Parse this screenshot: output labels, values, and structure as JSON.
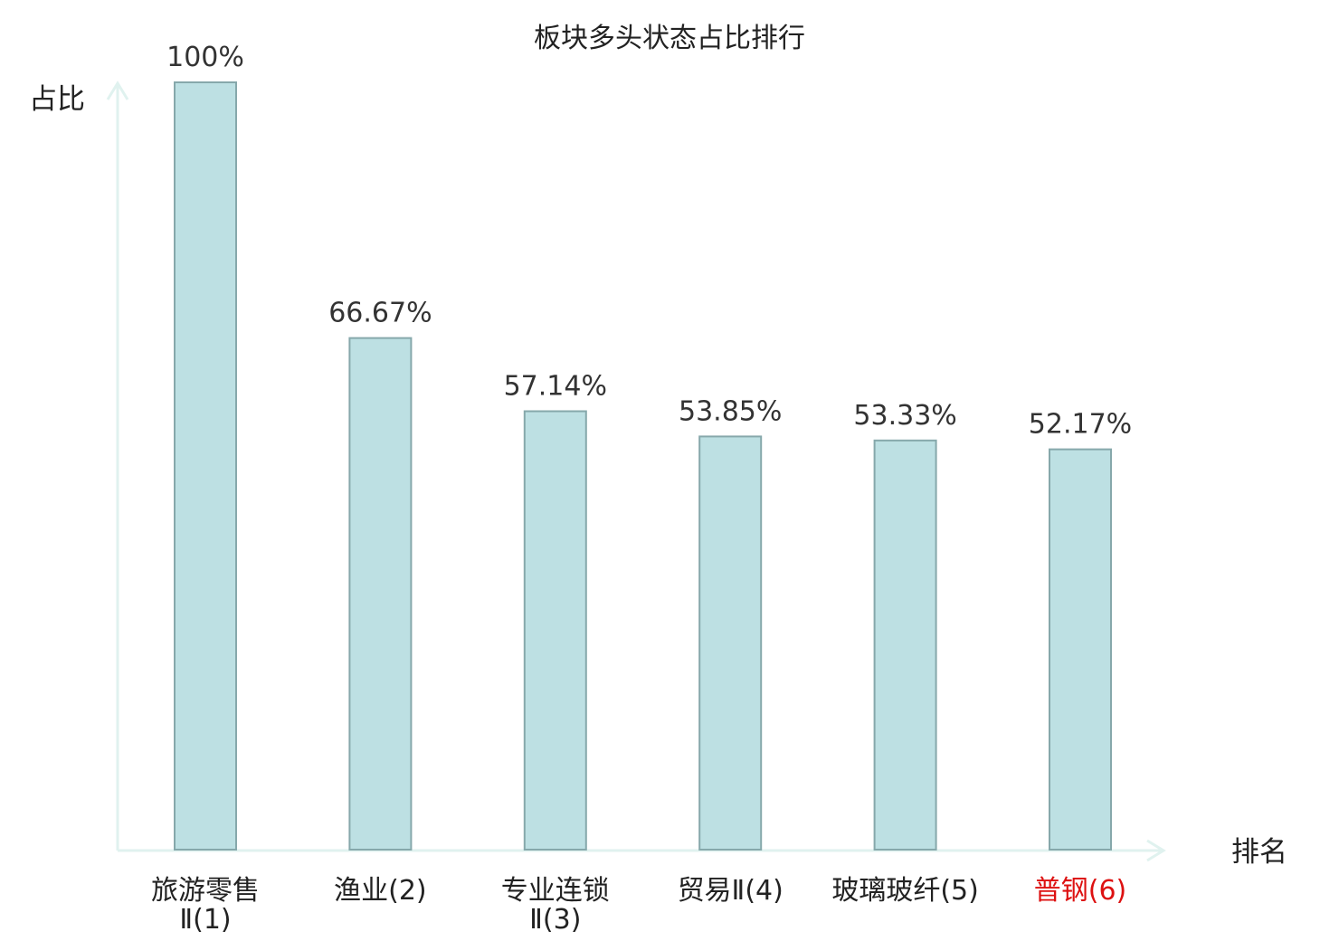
{
  "chart_data": {
    "type": "bar",
    "title": "板块多头状态占比排行",
    "ylabel": "占比",
    "xlabel": "排名",
    "ylim": [
      0,
      100
    ],
    "grid": false,
    "categories": [
      [
        "旅游零售",
        "Ⅱ(1)"
      ],
      [
        "渔业(2)"
      ],
      [
        "专业连锁",
        "Ⅱ(3)"
      ],
      [
        "贸易Ⅱ(4)"
      ],
      [
        "玻璃玻纤(5)"
      ],
      [
        "普钢(6)"
      ]
    ],
    "values": [
      100,
      66.67,
      57.14,
      53.85,
      53.33,
      52.17
    ],
    "value_labels": [
      "100%",
      "66.67%",
      "57.14%",
      "53.85%",
      "53.33%",
      "52.17%"
    ],
    "highlight_index": 5,
    "colors": {
      "bar_fill": "#bde0e3",
      "bar_stroke": "#86a8ab",
      "axis": "#e0f2ef",
      "highlight_text": "#dd1111",
      "text": "#222222"
    }
  }
}
